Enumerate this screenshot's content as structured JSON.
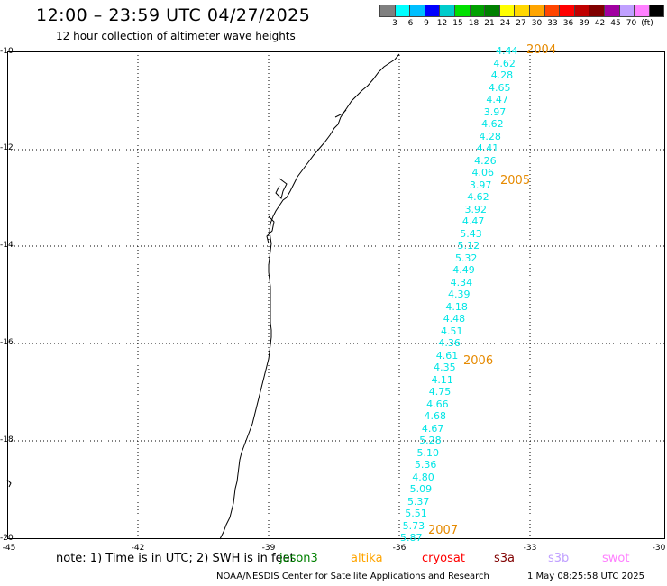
{
  "header": {
    "title": "12:00 – 23:59 UTC 04/27/2025",
    "subtitle": "12 hour collection of altimeter wave heights"
  },
  "legend": {
    "unit": "(ft)",
    "colors": [
      "#808080",
      "#00ffff",
      "#00bfff",
      "#0000ff",
      "#00cccc",
      "#00e000",
      "#00a000",
      "#008000",
      "#ffff00",
      "#ffd700",
      "#ffa500",
      "#ff4500",
      "#ff0000",
      "#c00000",
      "#800000",
      "#a000a0",
      "#c0a0ff",
      "#ff80ff",
      "#000000"
    ],
    "labels": [
      "3",
      "6",
      "9",
      "12",
      "15",
      "18",
      "21",
      "24",
      "27",
      "30",
      "33",
      "36",
      "39",
      "42",
      "45",
      "70"
    ]
  },
  "map": {
    "lat_labels": [
      "-10",
      "-12",
      "-14",
      "-16",
      "-18",
      "-20"
    ],
    "lon_labels": [
      "-45",
      "-42",
      "-39",
      "-36",
      "-33",
      "-30"
    ],
    "wave_heights": [
      "4.44",
      "4.62",
      "4.28",
      "4.65",
      "4.47",
      "3.97",
      "4.62",
      "4.28",
      "4.41",
      "4.26",
      "4.06",
      "3.97",
      "4.62",
      "3.92",
      "4.47",
      "5.43",
      "5.12",
      "5.32",
      "4.49",
      "4.34",
      "4.39",
      "4.18",
      "4.48",
      "4.51",
      "4.36",
      "4.61",
      "4.35",
      "4.11",
      "4.75",
      "4.66",
      "4.68",
      "4.67",
      "5.28",
      "5.10",
      "5.36",
      "4.80",
      "5.09",
      "5.37",
      "5.51",
      "5.73",
      "5.87"
    ],
    "year_labels": [
      "2004",
      "2005",
      "2006",
      "2007"
    ],
    "land_color": "#000000",
    "grid": true
  },
  "footer": {
    "note": "note:  1) Time is in UTC; 2) SWH is in feet",
    "satellites": [
      {
        "name": "jason3",
        "color": "#008000"
      },
      {
        "name": "altika",
        "color": "#ffa500"
      },
      {
        "name": "cryosat",
        "color": "#ff0000"
      },
      {
        "name": "s3a",
        "color": "#800000"
      },
      {
        "name": "s3b",
        "color": "#c0a0ff"
      },
      {
        "name": "swot",
        "color": "#ff80ff"
      }
    ],
    "credit": "NOAA/NESDIS Center for Satellite Applications and Research",
    "timestamp": "1 May 08:25:58 UTC 2025"
  }
}
